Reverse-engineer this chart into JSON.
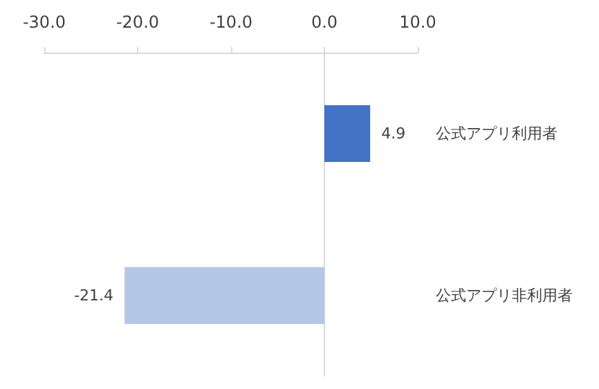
{
  "chart_data": {
    "type": "bar",
    "orientation": "horizontal",
    "categories": [
      "公式アプリ利用者",
      "公式アプリ非利用者"
    ],
    "values": [
      4.9,
      -21.4
    ],
    "colors": [
      "#4472c4",
      "#b4c7e7"
    ],
    "xlim": [
      -30,
      10
    ],
    "xticks": [
      {
        "value": -30,
        "label": "-30.0"
      },
      {
        "value": -20,
        "label": "-20.0"
      },
      {
        "value": -10,
        "label": "-10.0"
      },
      {
        "value": 0,
        "label": "0.0"
      },
      {
        "value": 10,
        "label": "10.0"
      }
    ],
    "data_labels": true
  }
}
